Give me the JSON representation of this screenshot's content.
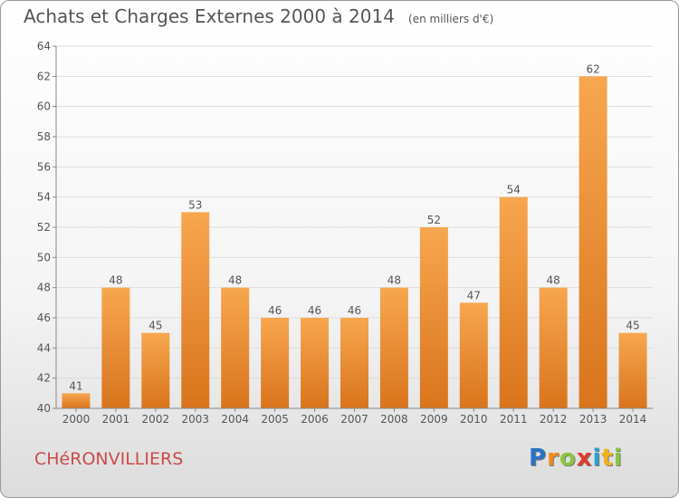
{
  "header": {
    "title": "Achats et Charges Externes 2000 à 2014",
    "subtitle": "(en milliers d'€)"
  },
  "footer": {
    "commune": "CHéRONVILLIERS",
    "logo_letters": [
      "P",
      "r",
      "o",
      "x",
      "i",
      "t",
      "i"
    ],
    "logo_colors": [
      "#2a73c4",
      "#f08a1c",
      "#8cc63f",
      "#e03b2b",
      "#2a9fd6",
      "#f0b21c",
      "#8cc63f"
    ]
  },
  "colors": {
    "bar_top": "#f7a74f",
    "bar_bottom": "#d9741c",
    "grid": "#dddddd",
    "axis": "#888888",
    "text": "#555555"
  },
  "chart_data": {
    "type": "bar",
    "categories": [
      "2000",
      "2001",
      "2002",
      "2003",
      "2004",
      "2005",
      "2006",
      "2007",
      "2008",
      "2009",
      "2010",
      "2011",
      "2012",
      "2013",
      "2014"
    ],
    "values": [
      41,
      48,
      45,
      53,
      48,
      46,
      46,
      46,
      48,
      52,
      47,
      54,
      48,
      62,
      45
    ],
    "title": "Achats et Charges Externes 2000 à 2014",
    "subtitle": "(en milliers d'€)",
    "xlabel": "",
    "ylabel": "",
    "ylim": [
      40,
      64
    ],
    "yticks": [
      40,
      42,
      44,
      46,
      48,
      50,
      52,
      54,
      56,
      58,
      60,
      62,
      64
    ],
    "grid": true,
    "legend": "none"
  }
}
